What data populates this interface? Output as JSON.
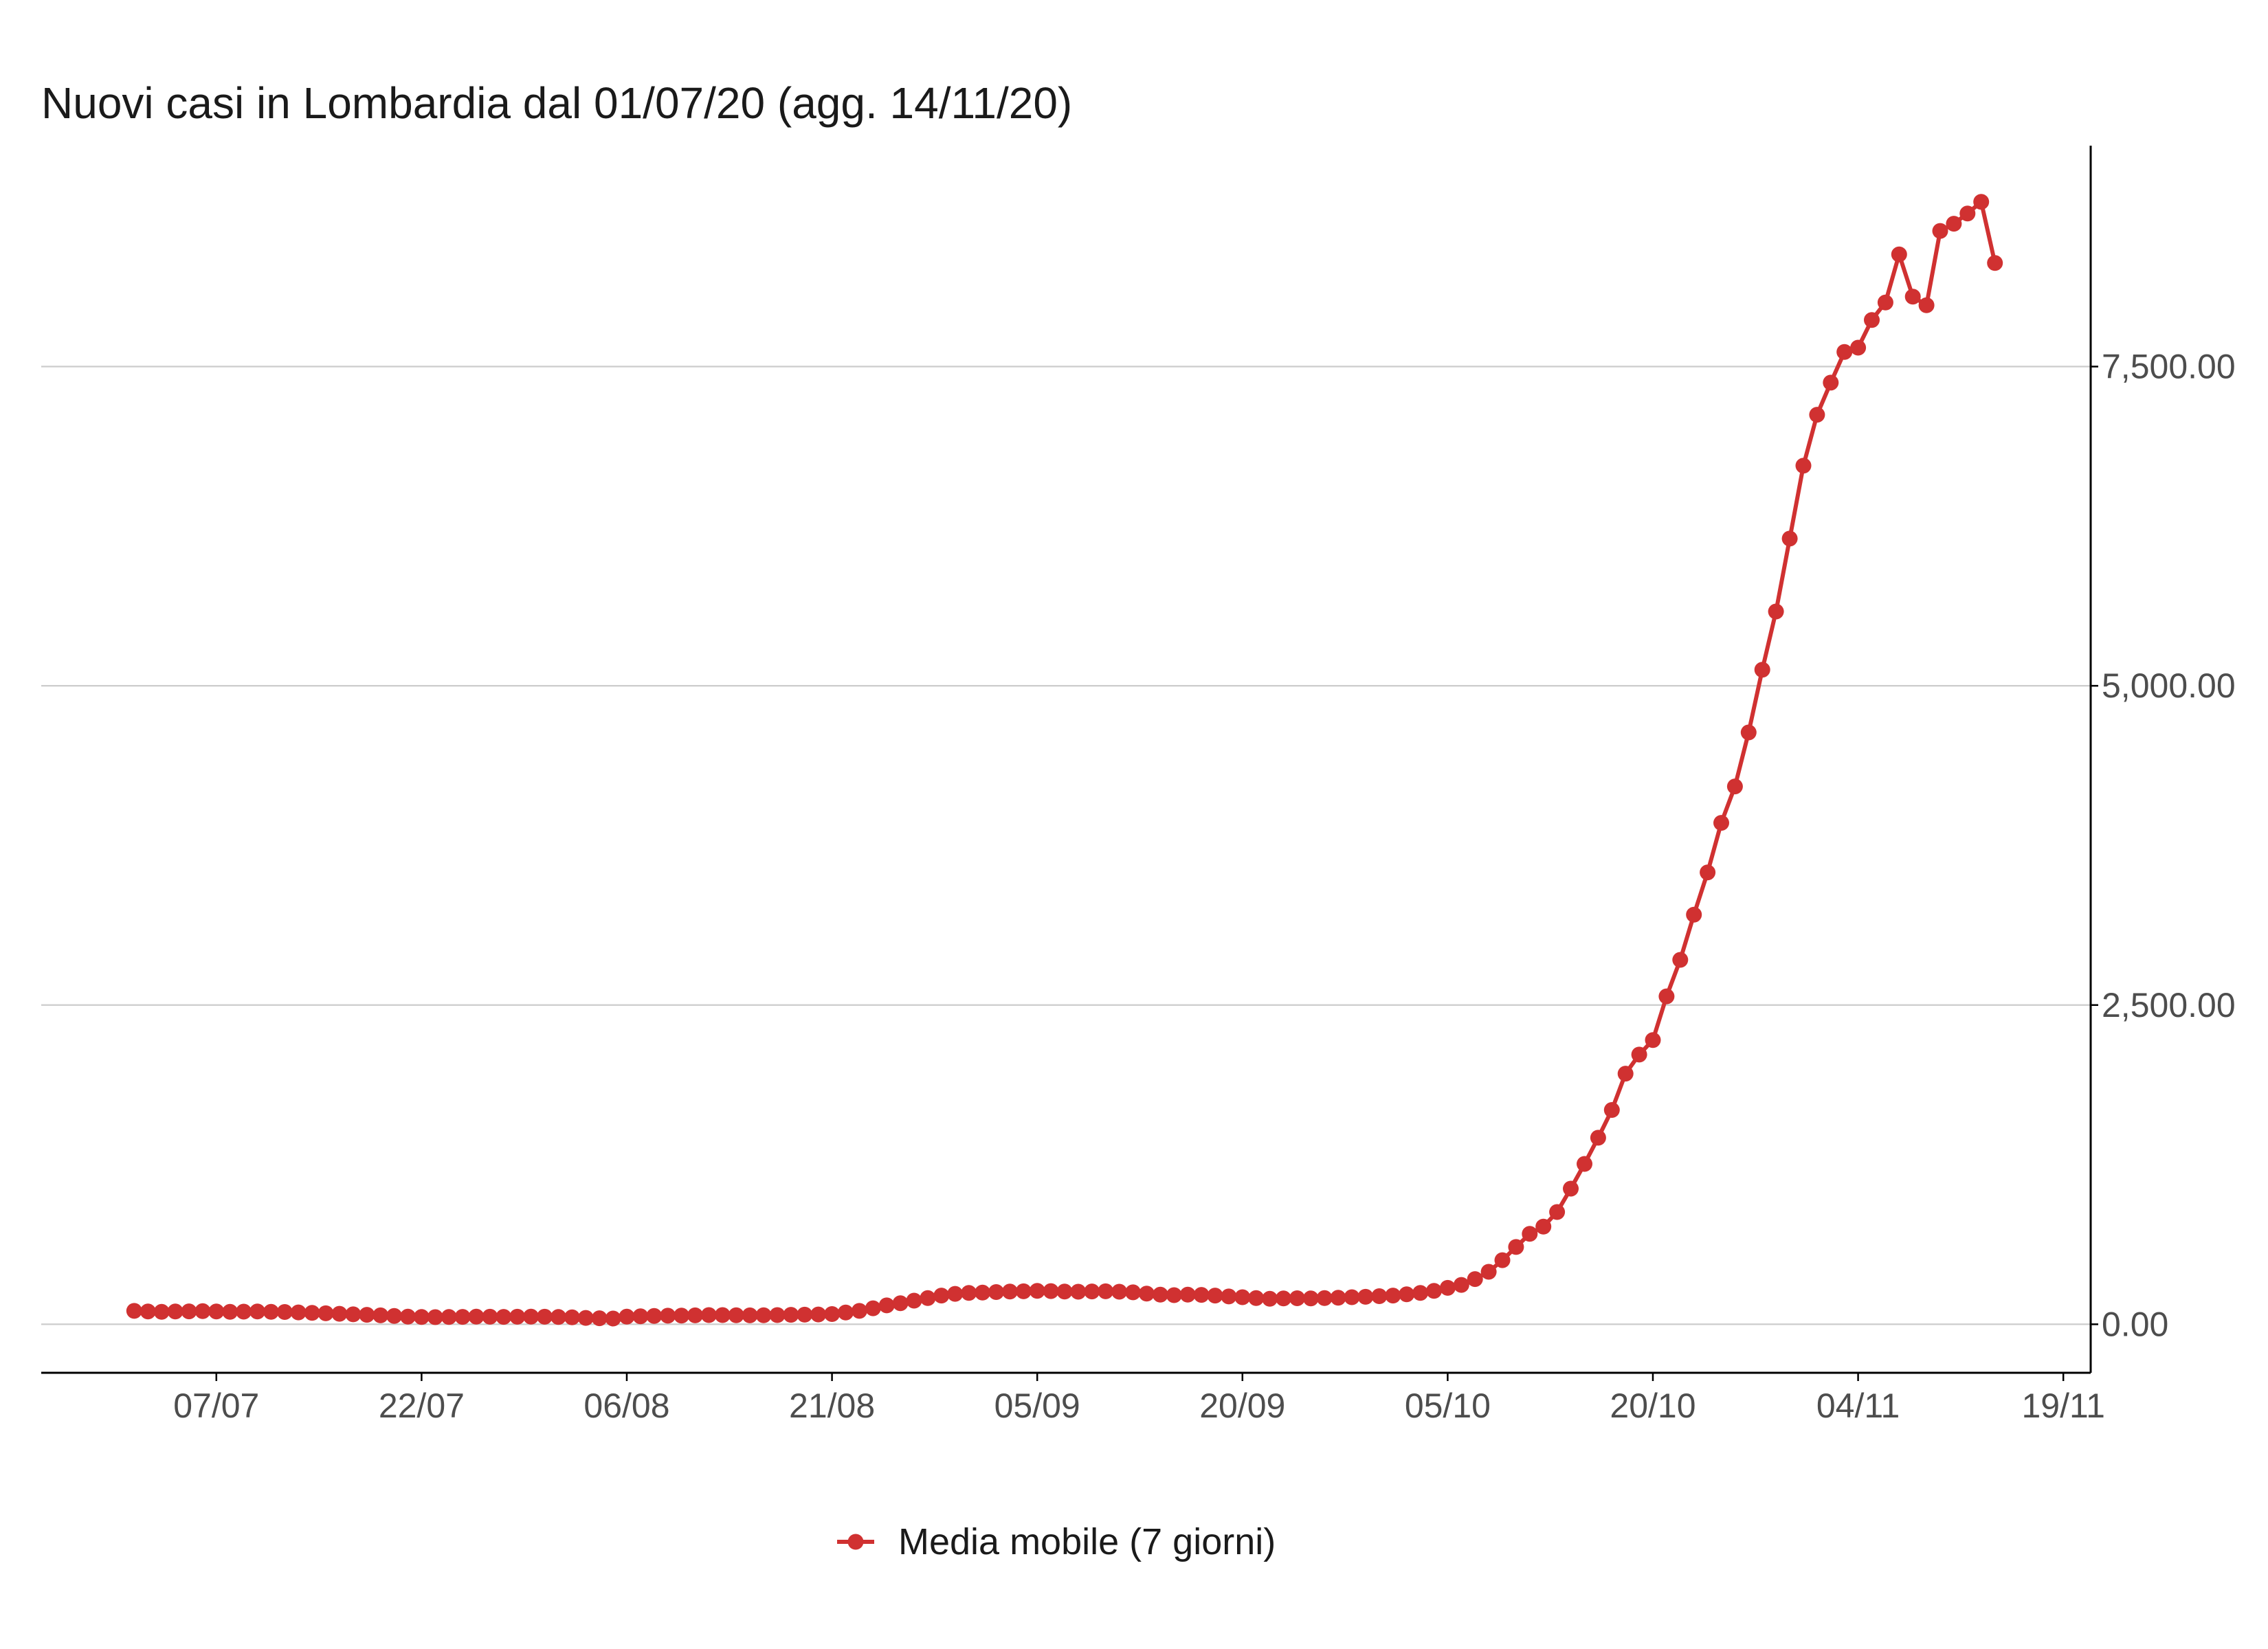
{
  "colors": {
    "series": "#D03131",
    "grid": "#CCCCCC",
    "axis": "#000000",
    "background": "#FFFFFF"
  },
  "chart_data": {
    "type": "line",
    "title": "Nuovi casi in Lombardia dal 01/07/20 (agg. 14/11/20)",
    "x": [
      "2020-07-01",
      "2020-07-02",
      "2020-07-03",
      "2020-07-04",
      "2020-07-05",
      "2020-07-06",
      "2020-07-07",
      "2020-07-08",
      "2020-07-09",
      "2020-07-10",
      "2020-07-11",
      "2020-07-12",
      "2020-07-13",
      "2020-07-14",
      "2020-07-15",
      "2020-07-16",
      "2020-07-17",
      "2020-07-18",
      "2020-07-19",
      "2020-07-20",
      "2020-07-21",
      "2020-07-22",
      "2020-07-23",
      "2020-07-24",
      "2020-07-25",
      "2020-07-26",
      "2020-07-27",
      "2020-07-28",
      "2020-07-29",
      "2020-07-30",
      "2020-07-31",
      "2020-08-01",
      "2020-08-02",
      "2020-08-03",
      "2020-08-04",
      "2020-08-05",
      "2020-08-06",
      "2020-08-07",
      "2020-08-08",
      "2020-08-09",
      "2020-08-10",
      "2020-08-11",
      "2020-08-12",
      "2020-08-13",
      "2020-08-14",
      "2020-08-15",
      "2020-08-16",
      "2020-08-17",
      "2020-08-18",
      "2020-08-19",
      "2020-08-20",
      "2020-08-21",
      "2020-08-22",
      "2020-08-23",
      "2020-08-24",
      "2020-08-25",
      "2020-08-26",
      "2020-08-27",
      "2020-08-28",
      "2020-08-29",
      "2020-08-30",
      "2020-08-31",
      "2020-09-01",
      "2020-09-02",
      "2020-09-03",
      "2020-09-04",
      "2020-09-05",
      "2020-09-06",
      "2020-09-07",
      "2020-09-08",
      "2020-09-09",
      "2020-09-10",
      "2020-09-11",
      "2020-09-12",
      "2020-09-13",
      "2020-09-14",
      "2020-09-15",
      "2020-09-16",
      "2020-09-17",
      "2020-09-18",
      "2020-09-19",
      "2020-09-20",
      "2020-09-21",
      "2020-09-22",
      "2020-09-23",
      "2020-09-24",
      "2020-09-25",
      "2020-09-26",
      "2020-09-27",
      "2020-09-28",
      "2020-09-29",
      "2020-09-30",
      "2020-10-01",
      "2020-10-02",
      "2020-10-03",
      "2020-10-04",
      "2020-10-05",
      "2020-10-06",
      "2020-10-07",
      "2020-10-08",
      "2020-10-09",
      "2020-10-10",
      "2020-10-11",
      "2020-10-12",
      "2020-10-13",
      "2020-10-14",
      "2020-10-15",
      "2020-10-16",
      "2020-10-17",
      "2020-10-18",
      "2020-10-19",
      "2020-10-20",
      "2020-10-21",
      "2020-10-22",
      "2020-10-23",
      "2020-10-24",
      "2020-10-25",
      "2020-10-26",
      "2020-10-27",
      "2020-10-28",
      "2020-10-29",
      "2020-10-30",
      "2020-10-31",
      "2020-11-01",
      "2020-11-02",
      "2020-11-03",
      "2020-11-04",
      "2020-11-05",
      "2020-11-06",
      "2020-11-07",
      "2020-11-08",
      "2020-11-09",
      "2020-11-10",
      "2020-11-11",
      "2020-11-12",
      "2020-11-13",
      "2020-11-14"
    ],
    "series": [
      {
        "name": "Media mobile (7 giorni)",
        "values": [
          105,
          100,
          98,
          100,
          101,
          103,
          100,
          98,
          99,
          100,
          98,
          96,
          93,
          90,
          86,
          82,
          78,
          74,
          70,
          65,
          60,
          57,
          56,
          57,
          58,
          60,
          59,
          58,
          59,
          60,
          59,
          57,
          54,
          50,
          47,
          45,
          60,
          63,
          65,
          67,
          68,
          70,
          72,
          72,
          71,
          70,
          71,
          72,
          74,
          75,
          77,
          80,
          92,
          105,
          125,
          148,
          165,
          185,
          205,
          225,
          238,
          245,
          248,
          252,
          256,
          258,
          262,
          260,
          256,
          255,
          257,
          258,
          255,
          250,
          240,
          232,
          228,
          232,
          230,
          225,
          218,
          212,
          205,
          200,
          202,
          204,
          203,
          205,
          208,
          212,
          215,
          220,
          225,
          235,
          245,
          262,
          285,
          308,
          354,
          411,
          502,
          605,
          708,
          765,
          879,
          1062,
          1256,
          1461,
          1678,
          1963,
          2112,
          2226,
          2568,
          2854,
          3208,
          3539,
          3927,
          4212,
          4635,
          5126,
          5582,
          6153,
          6724,
          7123,
          7374,
          7614,
          7648,
          7865,
          8002,
          8379,
          8048,
          7980,
          8562,
          8619,
          8699,
          8790,
          8311
        ]
      }
    ],
    "xlim": [
      "2020-06-24",
      "2020-11-21"
    ],
    "ylim": [
      -380,
      9230
    ],
    "x_ticks": {
      "values": [
        "2020-07-07",
        "2020-07-22",
        "2020-08-06",
        "2020-08-21",
        "2020-09-05",
        "2020-09-20",
        "2020-10-05",
        "2020-10-20",
        "2020-11-04",
        "2020-11-19"
      ],
      "labels": [
        "07/07",
        "22/07",
        "06/08",
        "21/08",
        "05/09",
        "20/09",
        "05/10",
        "20/10",
        "04/11",
        "19/11"
      ]
    },
    "y_ticks": {
      "values": [
        0,
        2500,
        5000,
        7500
      ],
      "labels": [
        "0.00",
        "2,500.00",
        "5,000.00",
        "7,500.00"
      ]
    },
    "y_axis": "right",
    "grid": {
      "horizontal": true,
      "vertical": false
    },
    "legend": {
      "position": "bottom"
    }
  }
}
